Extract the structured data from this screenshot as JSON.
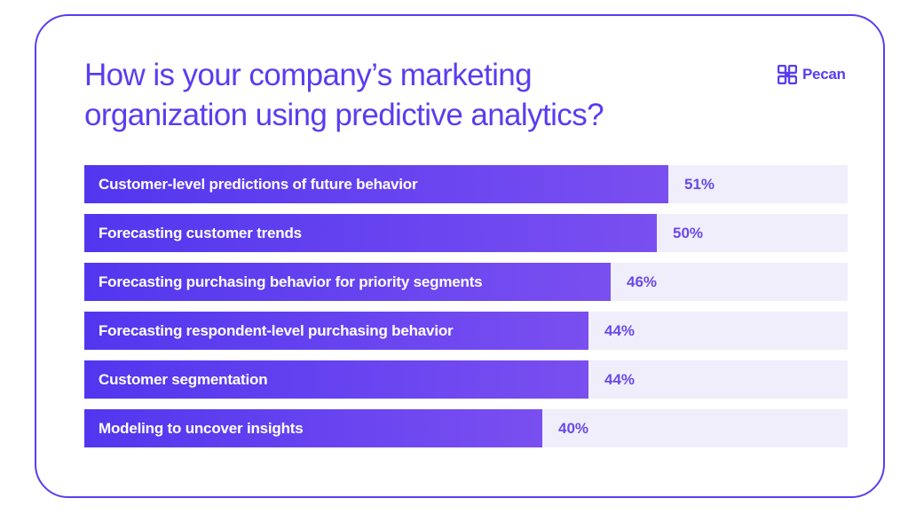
{
  "colors": {
    "accent": "#5a3df0",
    "bar_start": "#5236ef",
    "bar_end": "#7a4ff0",
    "track": "#f0eefb",
    "value_text": "#6a4ae8"
  },
  "brand": {
    "logo_icon": "pecan-logo-icon",
    "name": "Pecan"
  },
  "chart_data": {
    "type": "bar",
    "orientation": "horizontal",
    "title_lines": [
      "How is your company’s marketing",
      "organization using predictive analytics?"
    ],
    "categories": [
      "Customer-level predictions of future behavior",
      "Forecasting customer trends",
      "Forecasting purchasing behavior for priority segments",
      "Forecasting respondent-level purchasing behavior",
      "Customer segmentation",
      "Modeling to uncover insights"
    ],
    "values": [
      51,
      50,
      46,
      44,
      44,
      40
    ],
    "value_labels": [
      "51%",
      "50%",
      "46%",
      "44%",
      "44%",
      "40%"
    ],
    "unit": "%",
    "xlim": [
      0,
      100
    ],
    "grid": false,
    "legend": "none"
  }
}
